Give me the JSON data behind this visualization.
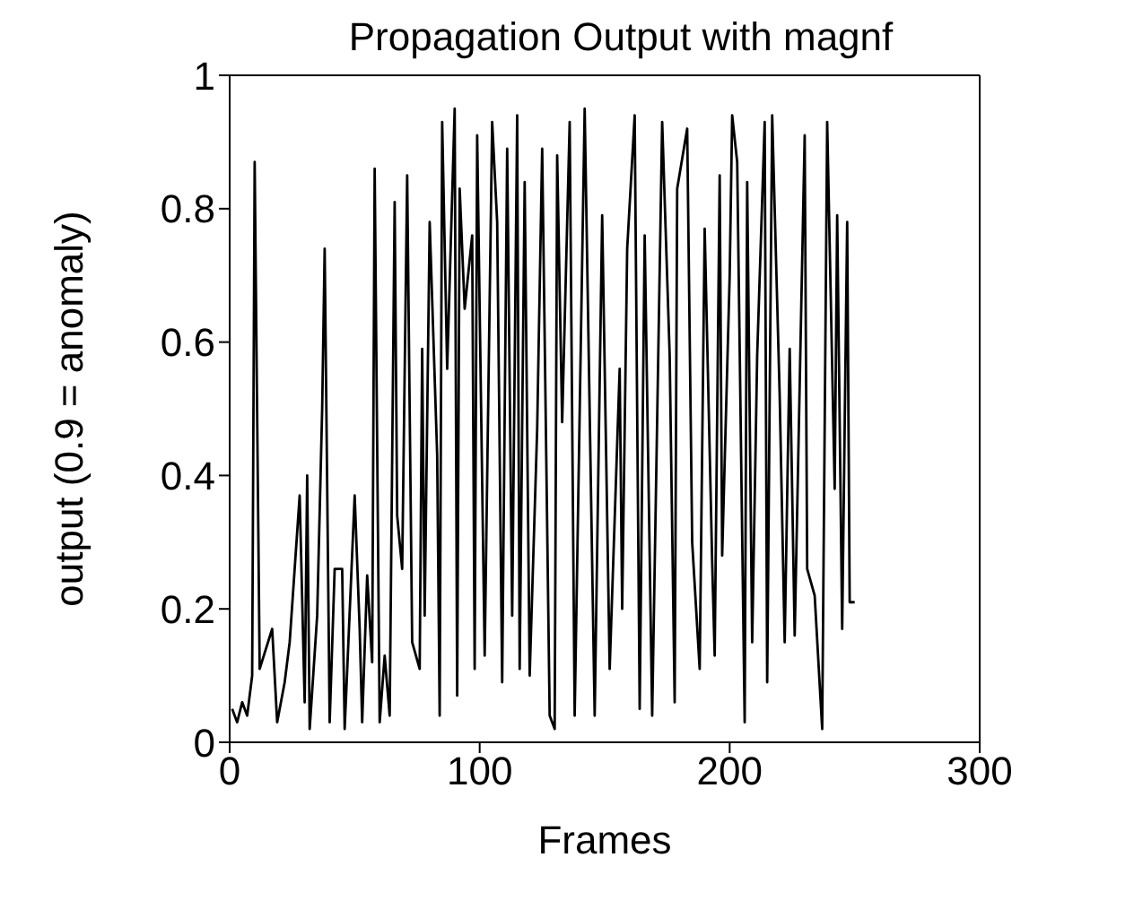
{
  "chart_data": {
    "type": "line",
    "title": "Propagation Output with magnf",
    "xlabel": "Frames",
    "ylabel": "output (0.9 = anomaly)",
    "xlim": [
      0,
      300
    ],
    "xticks": [
      0,
      100,
      200,
      300
    ],
    "ylim": [
      0,
      1
    ],
    "yticks": [
      0,
      0.2,
      0.4,
      0.6,
      0.8,
      1
    ],
    "legend": false,
    "marker": "none",
    "line_style": "solid",
    "series": [
      {
        "color": "#000000",
        "x": [
          1,
          3,
          5,
          7,
          9,
          10,
          12,
          17,
          19,
          22,
          24,
          28,
          30,
          31,
          32,
          35,
          37,
          38,
          40,
          42,
          45,
          46,
          50,
          52,
          53,
          55,
          57,
          58,
          60,
          62,
          64,
          66,
          67,
          69,
          71,
          73,
          76,
          77,
          78,
          80,
          83,
          84,
          85,
          87,
          90,
          91,
          92,
          94,
          97,
          98,
          99,
          102,
          105,
          107,
          109,
          111,
          113,
          115,
          116,
          118,
          120,
          123,
          125,
          128,
          130,
          131,
          133,
          136,
          138,
          142,
          146,
          149,
          152,
          156,
          157,
          159,
          162,
          164,
          166,
          169,
          173,
          176,
          178,
          179,
          183,
          185,
          188,
          190,
          193,
          194,
          196,
          197,
          200,
          201,
          203,
          206,
          207,
          209,
          211,
          214,
          215,
          217,
          220,
          222,
          224,
          226,
          230,
          231,
          234,
          237,
          239,
          242,
          243,
          245,
          247,
          248,
          250
        ],
        "values": [
          0.05,
          0.03,
          0.06,
          0.04,
          0.1,
          0.87,
          0.11,
          0.17,
          0.03,
          0.09,
          0.15,
          0.37,
          0.06,
          0.4,
          0.02,
          0.19,
          0.5,
          0.74,
          0.03,
          0.26,
          0.26,
          0.02,
          0.37,
          0.17,
          0.03,
          0.25,
          0.12,
          0.86,
          0.03,
          0.13,
          0.04,
          0.81,
          0.34,
          0.26,
          0.85,
          0.15,
          0.11,
          0.59,
          0.19,
          0.78,
          0.43,
          0.04,
          0.93,
          0.56,
          0.95,
          0.07,
          0.83,
          0.65,
          0.76,
          0.11,
          0.91,
          0.13,
          0.93,
          0.78,
          0.09,
          0.89,
          0.19,
          0.94,
          0.11,
          0.84,
          0.1,
          0.47,
          0.89,
          0.04,
          0.02,
          0.88,
          0.48,
          0.93,
          0.04,
          0.95,
          0.04,
          0.79,
          0.11,
          0.56,
          0.2,
          0.74,
          0.94,
          0.05,
          0.76,
          0.04,
          0.93,
          0.58,
          0.06,
          0.83,
          0.92,
          0.3,
          0.11,
          0.77,
          0.27,
          0.13,
          0.85,
          0.28,
          0.7,
          0.94,
          0.87,
          0.03,
          0.84,
          0.15,
          0.58,
          0.93,
          0.09,
          0.94,
          0.52,
          0.15,
          0.59,
          0.16,
          0.91,
          0.26,
          0.22,
          0.02,
          0.93,
          0.38,
          0.79,
          0.17,
          0.78,
          0.21,
          0.21
        ]
      }
    ]
  }
}
